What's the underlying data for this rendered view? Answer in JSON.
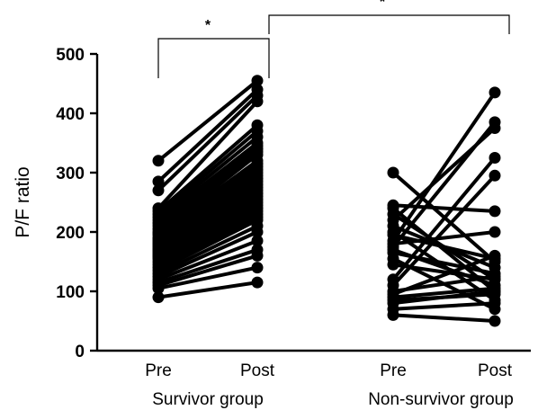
{
  "chart_data": {
    "type": "line",
    "ylabel": "P/F ratio",
    "ylim": [
      0,
      500
    ],
    "yticks": [
      0,
      100,
      200,
      300,
      400,
      500
    ],
    "groups": [
      {
        "name": "Survivor group",
        "conditions": [
          "Pre",
          "Post"
        ],
        "pairs": [
          [
            320,
            455
          ],
          [
            285,
            440
          ],
          [
            270,
            430
          ],
          [
            240,
            420
          ],
          [
            235,
            380
          ],
          [
            230,
            370
          ],
          [
            225,
            360
          ],
          [
            220,
            350
          ],
          [
            215,
            345
          ],
          [
            210,
            340
          ],
          [
            205,
            335
          ],
          [
            200,
            330
          ],
          [
            198,
            320
          ],
          [
            195,
            315
          ],
          [
            190,
            310
          ],
          [
            188,
            305
          ],
          [
            185,
            300
          ],
          [
            182,
            295
          ],
          [
            180,
            290
          ],
          [
            178,
            285
          ],
          [
            175,
            280
          ],
          [
            172,
            275
          ],
          [
            170,
            270
          ],
          [
            168,
            265
          ],
          [
            165,
            260
          ],
          [
            162,
            255
          ],
          [
            160,
            250
          ],
          [
            158,
            245
          ],
          [
            155,
            240
          ],
          [
            150,
            235
          ],
          [
            145,
            230
          ],
          [
            140,
            225
          ],
          [
            135,
            220
          ],
          [
            130,
            210
          ],
          [
            125,
            200
          ],
          [
            120,
            185
          ],
          [
            115,
            170
          ],
          [
            110,
            160
          ],
          [
            105,
            140
          ],
          [
            90,
            115
          ]
        ]
      },
      {
        "name": "Non-survivor group",
        "conditions": [
          "Pre",
          "Post"
        ],
        "pairs": [
          [
            300,
            150
          ],
          [
            245,
            235
          ],
          [
            240,
            100
          ],
          [
            230,
            120
          ],
          [
            220,
            375
          ],
          [
            210,
            140
          ],
          [
            200,
            85
          ],
          [
            195,
            155
          ],
          [
            185,
            435
          ],
          [
            180,
            200
          ],
          [
            175,
            385
          ],
          [
            170,
            110
          ],
          [
            165,
            130
          ],
          [
            155,
            70
          ],
          [
            145,
            120
          ],
          [
            120,
            325
          ],
          [
            110,
            295
          ],
          [
            100,
            125
          ],
          [
            95,
            160
          ],
          [
            90,
            105
          ],
          [
            85,
            95
          ],
          [
            80,
            100
          ],
          [
            70,
            80
          ],
          [
            60,
            50
          ]
        ]
      }
    ],
    "comparisons": [
      {
        "between": "Survivor Pre vs Survivor Post",
        "marker": "*"
      },
      {
        "between": "Survivor Post vs Non-survivor Post",
        "marker": "*"
      }
    ]
  }
}
